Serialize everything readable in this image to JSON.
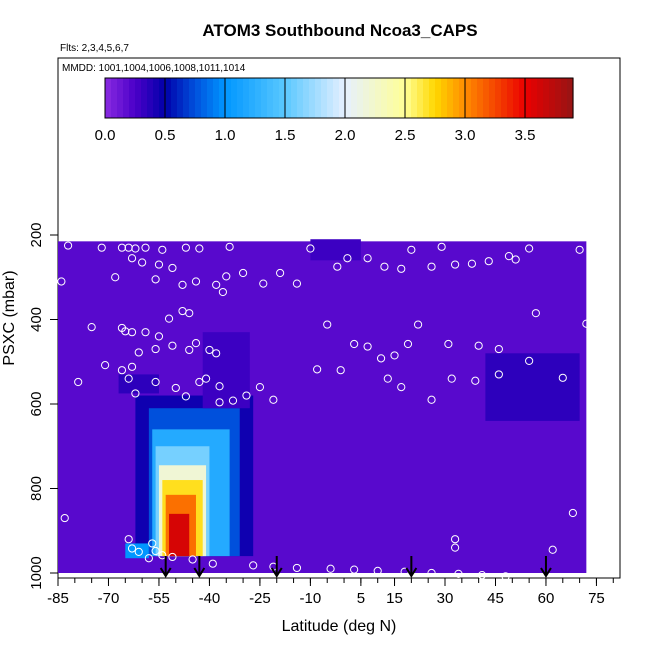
{
  "chart_data": {
    "type": "heatmap",
    "title": "ATOM3 Southbound Ncoa3_CAPS",
    "subtitle_flights": "Flts: 2,3,4,5,6,7",
    "subtitle_dates": "MMDD: 1001,1004,1006,1008,1011,1014",
    "xlabel": "Latitude (deg N)",
    "ylabel": "PSXC (mbar)",
    "xlim": [
      -85,
      82
    ],
    "ylim": [
      1000,
      0
    ],
    "xticks": [
      -85,
      -70,
      -55,
      -40,
      -25,
      -10,
      5,
      15,
      30,
      45,
      60,
      75
    ],
    "yticks": [
      200,
      400,
      600,
      800,
      1000
    ],
    "colorbar": {
      "range": [
        0,
        3.9
      ],
      "ticks": [
        0.0,
        0.5,
        1.0,
        1.5,
        2.0,
        2.5,
        3.0,
        3.5
      ],
      "tick_labels": [
        "0.0",
        "0.5",
        "1.0",
        "1.5",
        "2.0",
        "2.5",
        "3.0",
        "3.5"
      ]
    },
    "background_value": 0.2,
    "regions": [
      {
        "lat": [
          -85,
          72
        ],
        "p": [
          215,
          1000
        ],
        "value": 0.2
      },
      {
        "lat": [
          -62,
          -27
        ],
        "p": [
          580,
          960
        ],
        "value": 0.45
      },
      {
        "lat": [
          -58,
          -31
        ],
        "p": [
          610,
          960
        ],
        "value": 0.75
      },
      {
        "lat": [
          -57,
          -34
        ],
        "p": [
          660,
          960
        ],
        "value": 1.2
      },
      {
        "lat": [
          -56,
          -40
        ],
        "p": [
          700,
          960
        ],
        "value": 1.6
      },
      {
        "lat": [
          -55,
          -41
        ],
        "p": [
          745,
          960
        ],
        "value": 2.2
      },
      {
        "lat": [
          -54,
          -42
        ],
        "p": [
          780,
          960
        ],
        "value": 2.7
      },
      {
        "lat": [
          -53,
          -44
        ],
        "p": [
          815,
          960
        ],
        "value": 3.1
      },
      {
        "lat": [
          -52,
          -46
        ],
        "p": [
          860,
          960
        ],
        "value": 3.6
      },
      {
        "lat": [
          -65,
          -58
        ],
        "p": [
          930,
          965
        ],
        "value": 1.0
      },
      {
        "lat": [
          -67,
          -55
        ],
        "p": [
          530,
          575
        ],
        "value": 0.35
      },
      {
        "lat": [
          -42,
          -28
        ],
        "p": [
          430,
          610
        ],
        "value": 0.3
      },
      {
        "lat": [
          42,
          70
        ],
        "p": [
          480,
          640
        ],
        "value": 0.35
      },
      {
        "lat": [
          -10,
          5
        ],
        "p": [
          210,
          260
        ],
        "value": 0.3
      }
    ],
    "obs_points": [
      [
        -82,
        225
      ],
      [
        -72,
        230
      ],
      [
        -66,
        230
      ],
      [
        -64,
        230
      ],
      [
        -62,
        232
      ],
      [
        -59,
        230
      ],
      [
        -54,
        235
      ],
      [
        -47,
        230
      ],
      [
        -43,
        232
      ],
      [
        -34,
        228
      ],
      [
        -15,
        200
      ],
      [
        -10,
        232
      ],
      [
        1,
        255
      ],
      [
        7,
        255
      ],
      [
        20,
        235
      ],
      [
        29,
        228
      ],
      [
        49,
        250
      ],
      [
        55,
        232
      ],
      [
        70,
        235
      ],
      [
        -63,
        255
      ],
      [
        -60,
        265
      ],
      [
        -55,
        270
      ],
      [
        -51,
        278
      ],
      [
        -35,
        298
      ],
      [
        -30,
        290
      ],
      [
        -24,
        315
      ],
      [
        -19,
        290
      ],
      [
        -14,
        315
      ],
      [
        -2,
        275
      ],
      [
        12,
        275
      ],
      [
        17,
        280
      ],
      [
        26,
        275
      ],
      [
        33,
        270
      ],
      [
        38,
        268
      ],
      [
        43,
        262
      ],
      [
        51,
        258
      ],
      [
        -84,
        310
      ],
      [
        -68,
        300
      ],
      [
        -56,
        305
      ],
      [
        -48,
        318
      ],
      [
        -44,
        310
      ],
      [
        -75,
        418
      ],
      [
        -66,
        420
      ],
      [
        -65,
        428
      ],
      [
        -63,
        430
      ],
      [
        -59,
        430
      ],
      [
        -55,
        440
      ],
      [
        -52,
        398
      ],
      [
        -48,
        380
      ],
      [
        -46,
        385
      ],
      [
        -38,
        318
      ],
      [
        -36,
        335
      ],
      [
        -5,
        412
      ],
      [
        3,
        458
      ],
      [
        7,
        464
      ],
      [
        22,
        412
      ],
      [
        31,
        458
      ],
      [
        40,
        462
      ],
      [
        46,
        470
      ],
      [
        57,
        385
      ],
      [
        72,
        410
      ],
      [
        -71,
        508
      ],
      [
        -66,
        520
      ],
      [
        -63,
        512
      ],
      [
        -61,
        478
      ],
      [
        -56,
        470
      ],
      [
        -51,
        462
      ],
      [
        -46,
        472
      ],
      [
        -44,
        456
      ],
      [
        -40,
        472
      ],
      [
        -38,
        480
      ],
      [
        -8,
        518
      ],
      [
        -1,
        520
      ],
      [
        11,
        492
      ],
      [
        15,
        485
      ],
      [
        19,
        458
      ],
      [
        -79,
        548
      ],
      [
        -64,
        540
      ],
      [
        -56,
        548
      ],
      [
        -50,
        562
      ],
      [
        -43,
        548
      ],
      [
        -41,
        540
      ],
      [
        -37,
        558
      ],
      [
        -29,
        580
      ],
      [
        -25,
        560
      ],
      [
        -21,
        590
      ],
      [
        13,
        540
      ],
      [
        17,
        560
      ],
      [
        26,
        590
      ],
      [
        32,
        540
      ],
      [
        39,
        545
      ],
      [
        46,
        530
      ],
      [
        55,
        498
      ],
      [
        65,
        538
      ],
      [
        -37,
        596
      ],
      [
        -33,
        592
      ],
      [
        -47,
        582
      ],
      [
        -62,
        575
      ],
      [
        -83,
        870
      ],
      [
        33,
        920
      ],
      [
        33,
        940
      ],
      [
        62,
        945
      ],
      [
        68,
        858
      ],
      [
        -64,
        920
      ],
      [
        -57,
        930
      ],
      [
        -63,
        942
      ],
      [
        -61,
        950
      ],
      [
        -54,
        958
      ],
      [
        -58,
        965
      ],
      [
        -56,
        948
      ],
      [
        -51,
        962
      ],
      [
        -45,
        968
      ],
      [
        -39,
        978
      ],
      [
        -27,
        982
      ],
      [
        -21,
        985
      ],
      [
        -14,
        988
      ],
      [
        -4,
        990
      ],
      [
        3,
        992
      ],
      [
        10,
        995
      ],
      [
        18,
        997
      ],
      [
        26,
        1000
      ],
      [
        34,
        1002
      ],
      [
        41,
        1005
      ],
      [
        48,
        1008
      ]
    ],
    "flight_arrows_lat": [
      -53,
      -43,
      -20,
      20,
      60
    ]
  }
}
